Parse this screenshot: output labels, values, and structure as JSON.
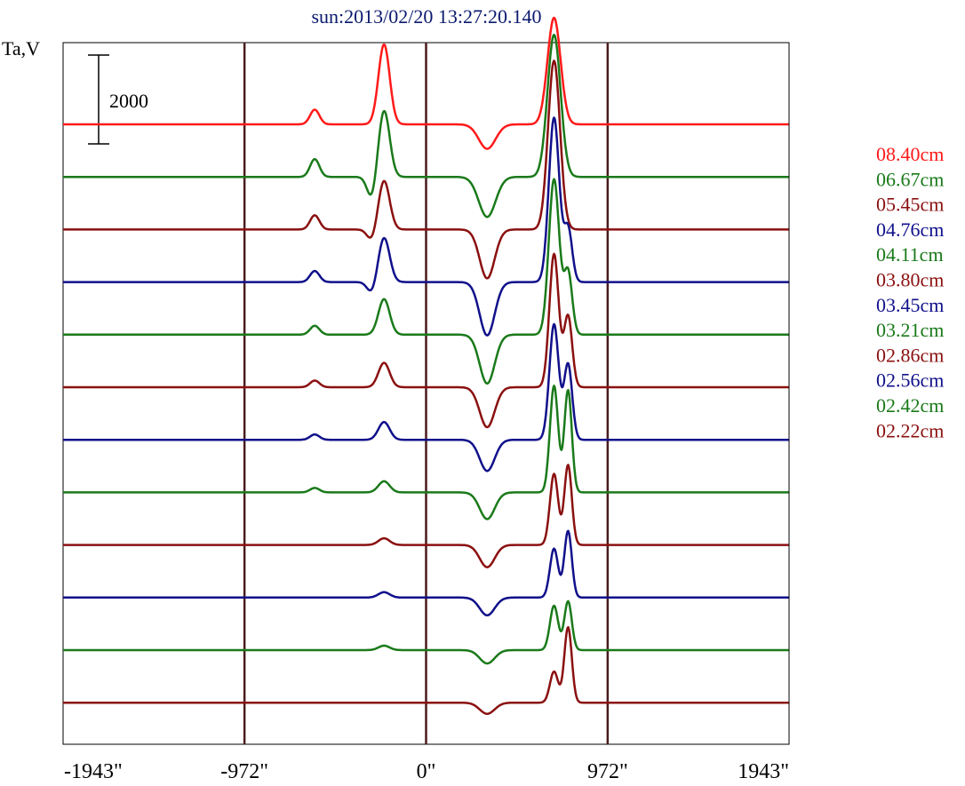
{
  "chart_data": {
    "type": "line",
    "title": "sun:2013/02/20 13:27:20.140",
    "ylabel": "Ta,V",
    "scale_bar_label": "2000",
    "scale_bar_value": 2000,
    "x_ticks": [
      "-1943\"",
      "-972\"",
      "0\"",
      "972\"",
      "1943\""
    ],
    "x_tick_values": [
      -1943,
      -972,
      0,
      972,
      1943
    ],
    "x_range": [
      -1943,
      1943
    ],
    "vertical_markers": [
      -972,
      0,
      972
    ],
    "vertical_marker_color": "#4a1c1c",
    "grid": false,
    "legend_position": "right",
    "series": [
      {
        "name": "08.40cm",
        "color": "#ff1a1a",
        "peaks": [
          [
            -596,
            330,
            25
          ],
          [
            -225,
            1800,
            30
          ],
          [
            327,
            -550,
            45
          ],
          [
            685,
            2400,
            35
          ]
        ]
      },
      {
        "name": "06.67cm",
        "color": "#1a7a1a",
        "peaks": [
          [
            -596,
            400,
            25
          ],
          [
            -225,
            1500,
            30
          ],
          [
            -290,
            -500,
            25
          ],
          [
            327,
            -900,
            45
          ],
          [
            685,
            3200,
            35
          ]
        ]
      },
      {
        "name": "05.45cm",
        "color": "#8b1010",
        "peaks": [
          [
            -596,
            320,
            25
          ],
          [
            -225,
            1100,
            30
          ],
          [
            -290,
            -250,
            25
          ],
          [
            327,
            -1100,
            40
          ],
          [
            685,
            3800,
            32
          ]
        ]
      },
      {
        "name": "04.76cm",
        "color": "#10108b",
        "peaks": [
          [
            -596,
            250,
            25
          ],
          [
            -225,
            1000,
            30
          ],
          [
            -290,
            -250,
            25
          ],
          [
            327,
            -1200,
            40
          ],
          [
            685,
            3700,
            28
          ],
          [
            760,
            1200,
            22
          ]
        ]
      },
      {
        "name": "04.11cm",
        "color": "#1a7a1a",
        "peaks": [
          [
            -596,
            200,
            25
          ],
          [
            -225,
            800,
            30
          ],
          [
            327,
            -1100,
            40
          ],
          [
            685,
            3500,
            28
          ],
          [
            760,
            1400,
            22
          ]
        ]
      },
      {
        "name": "03.80cm",
        "color": "#8b1010",
        "peaks": [
          [
            -596,
            150,
            25
          ],
          [
            -225,
            550,
            30
          ],
          [
            327,
            -900,
            40
          ],
          [
            685,
            3000,
            25
          ],
          [
            760,
            1600,
            22
          ]
        ]
      },
      {
        "name": "03.45cm",
        "color": "#10108b",
        "peaks": [
          [
            -596,
            120,
            25
          ],
          [
            -225,
            400,
            30
          ],
          [
            327,
            -700,
            40
          ],
          [
            685,
            2600,
            25
          ],
          [
            760,
            1700,
            22
          ]
        ]
      },
      {
        "name": "03.21cm",
        "color": "#1a7a1a",
        "peaks": [
          [
            -596,
            100,
            25
          ],
          [
            -225,
            250,
            30
          ],
          [
            327,
            -600,
            40
          ],
          [
            685,
            2400,
            22
          ],
          [
            760,
            2300,
            20
          ]
        ]
      },
      {
        "name": "02.86cm",
        "color": "#8b1010",
        "peaks": [
          [
            -225,
            150,
            30
          ],
          [
            327,
            -500,
            40
          ],
          [
            685,
            1600,
            22
          ],
          [
            760,
            1800,
            20
          ]
        ]
      },
      {
        "name": "02.56cm",
        "color": "#10108b",
        "peaks": [
          [
            -225,
            120,
            30
          ],
          [
            327,
            -400,
            40
          ],
          [
            685,
            1100,
            22
          ],
          [
            760,
            1500,
            20
          ]
        ]
      },
      {
        "name": "02.42cm",
        "color": "#1a7a1a",
        "peaks": [
          [
            -225,
            100,
            30
          ],
          [
            327,
            -300,
            40
          ],
          [
            685,
            1000,
            22
          ],
          [
            760,
            1100,
            20
          ]
        ]
      },
      {
        "name": "02.22cm",
        "color": "#8b1010",
        "peaks": [
          [
            327,
            -250,
            40
          ],
          [
            685,
            700,
            22
          ],
          [
            760,
            1700,
            20
          ]
        ]
      }
    ]
  }
}
